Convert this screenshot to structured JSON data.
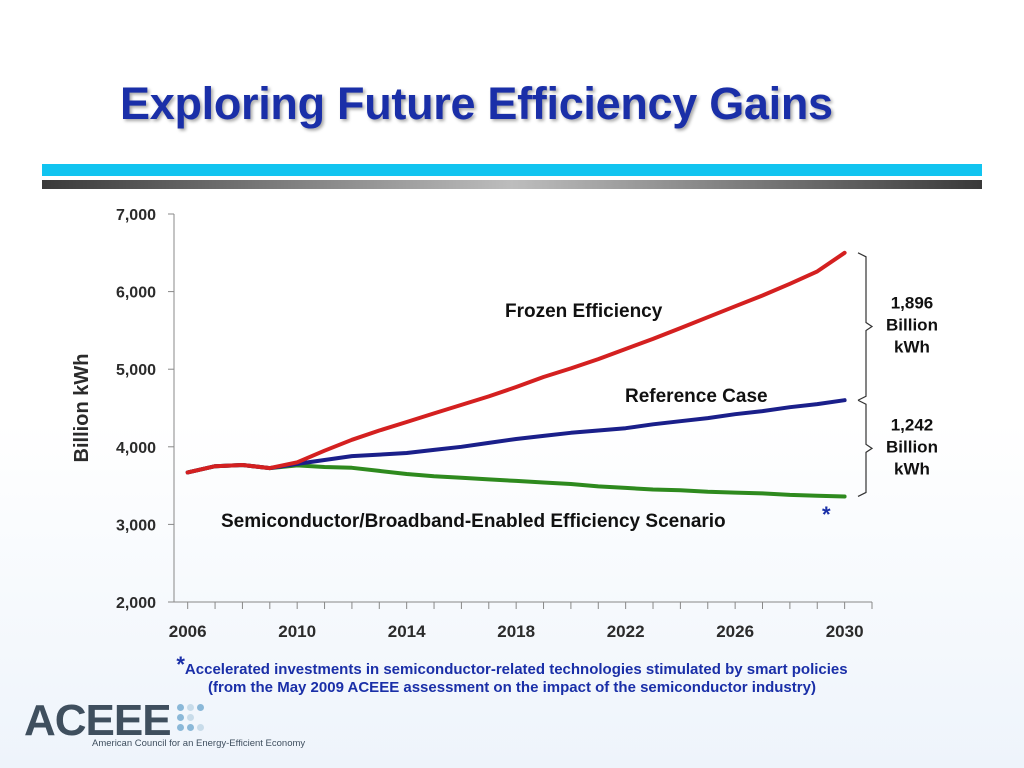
{
  "slide": {
    "title": "Exploring Future Efficiency Gains",
    "footnote_star": "*",
    "footnote_line1": "Accelerated investments in semiconductor-related technologies stimulated by smart policies",
    "footnote_line2": "(from the May 2009 ACEEE assessment on the impact of the semiconductor industry)"
  },
  "logo": {
    "name": "ACEEE",
    "tagline": "American Council for an Energy-Efficient Economy",
    "icon": "dot-grid-icon",
    "colors": [
      "#8ab8d8",
      "#c8dcea"
    ]
  },
  "chart_data": {
    "type": "line",
    "ylabel": "Billion kWh",
    "xlabel": "",
    "xlim": [
      2005.5,
      2031
    ],
    "ylim": [
      2000,
      7000
    ],
    "x_ticks": [
      2006,
      2010,
      2014,
      2018,
      2022,
      2026,
      2030
    ],
    "y_ticks": [
      2000,
      3000,
      4000,
      5000,
      6000,
      7000
    ],
    "x_tick_labels": [
      "2006",
      "2010",
      "2014",
      "2018",
      "2022",
      "2026",
      "2030"
    ],
    "y_tick_labels": [
      "2,000",
      "3,000",
      "4,000",
      "5,000",
      "6,000",
      "7,000"
    ],
    "grid": false,
    "series": [
      {
        "name": "Frozen Efficiency",
        "color": "#d42020",
        "x": [
          2006,
          2007,
          2008,
          2009,
          2010,
          2011,
          2012,
          2013,
          2014,
          2015,
          2016,
          2017,
          2018,
          2019,
          2020,
          2021,
          2022,
          2023,
          2024,
          2025,
          2026,
          2027,
          2028,
          2029,
          2030
        ],
        "y": [
          3670,
          3750,
          3765,
          3725,
          3800,
          3950,
          4090,
          4210,
          4320,
          4430,
          4540,
          4650,
          4770,
          4900,
          5010,
          5130,
          5260,
          5390,
          5530,
          5670,
          5810,
          5950,
          6100,
          6260,
          6500
        ]
      },
      {
        "name": "Reference Case",
        "color": "#1a1f8a",
        "x": [
          2006,
          2007,
          2008,
          2009,
          2010,
          2011,
          2012,
          2013,
          2014,
          2015,
          2016,
          2017,
          2018,
          2019,
          2020,
          2021,
          2022,
          2023,
          2024,
          2025,
          2026,
          2027,
          2028,
          2029,
          2030
        ],
        "y": [
          3670,
          3750,
          3765,
          3725,
          3780,
          3830,
          3880,
          3900,
          3920,
          3960,
          4000,
          4050,
          4100,
          4140,
          4180,
          4210,
          4240,
          4290,
          4330,
          4370,
          4420,
          4460,
          4510,
          4550,
          4600
        ]
      },
      {
        "name": "Semiconductor/Broadband-Enabled Efficiency Scenario",
        "color": "#2e8a1e",
        "x": [
          2006,
          2007,
          2008,
          2009,
          2010,
          2011,
          2012,
          2013,
          2014,
          2015,
          2016,
          2017,
          2018,
          2019,
          2020,
          2021,
          2022,
          2023,
          2024,
          2025,
          2026,
          2027,
          2028,
          2029,
          2030
        ],
        "y": [
          3670,
          3750,
          3765,
          3725,
          3760,
          3740,
          3730,
          3690,
          3650,
          3620,
          3600,
          3580,
          3560,
          3540,
          3520,
          3490,
          3470,
          3450,
          3440,
          3420,
          3410,
          3400,
          3380,
          3370,
          3360
        ]
      }
    ],
    "series_labels": [
      "Frozen Efficiency",
      "Reference Case",
      "Semiconductor/Broadband-Enabled Efficiency Scenario"
    ],
    "scenario_asterisk": "*",
    "brackets": [
      {
        "from": 6500,
        "to": 4600,
        "label": [
          "1,896",
          "Billion",
          "kWh"
        ]
      },
      {
        "from": 4600,
        "to": 3360,
        "label": [
          "1,242",
          "Billion",
          "kWh"
        ]
      }
    ]
  }
}
